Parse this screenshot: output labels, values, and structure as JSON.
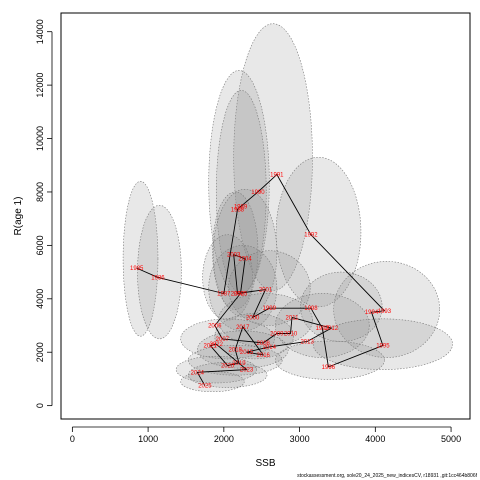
{
  "chart_data": {
    "type": "scatter",
    "title": "",
    "xlabel": "SSB",
    "ylabel": "R(age 1)",
    "xlim": [
      -150,
      5250
    ],
    "ylim": [
      -500,
      14700
    ],
    "x_ticks": [
      0,
      1000,
      2000,
      3000,
      4000,
      5000
    ],
    "y_ticks": [
      0,
      2000,
      4000,
      6000,
      8000,
      10000,
      12000,
      14000
    ],
    "x_tick_labels": [
      "0",
      "1000",
      "2000",
      "3000",
      "4000",
      "5000"
    ],
    "y_tick_labels": [
      "0",
      "2000",
      "4000",
      "6000",
      "8000",
      "10000",
      "12000",
      "14000"
    ],
    "grid": false,
    "footer": "stockassessment.org, sole20_24_2025_new_indicesCV, r18931 ,git:1cc464b806f",
    "colors": {
      "point_label": "#ff0000",
      "path_line": "#000000",
      "ellipse_fill": "#8a8a8a"
    },
    "points": [
      {
        "year": "1985",
        "x": 850,
        "y": 5150
      },
      {
        "year": "1986",
        "x": 1130,
        "y": 4800
      },
      {
        "year": "1987",
        "x": 2000,
        "y": 4200
      },
      {
        "year": "1988",
        "x": 2180,
        "y": 7350
      },
      {
        "year": "1989",
        "x": 2220,
        "y": 7450
      },
      {
        "year": "1990",
        "x": 2450,
        "y": 8000
      },
      {
        "year": "1991",
        "x": 2700,
        "y": 8650
      },
      {
        "year": "1992",
        "x": 3150,
        "y": 6400
      },
      {
        "year": "1993",
        "x": 4120,
        "y": 3550
      },
      {
        "year": "1994",
        "x": 3950,
        "y": 3500
      },
      {
        "year": "1995",
        "x": 4100,
        "y": 2250
      },
      {
        "year": "1996",
        "x": 3380,
        "y": 1450
      },
      {
        "year": "1997",
        "x": 3300,
        "y": 2900
      },
      {
        "year": "1998",
        "x": 3150,
        "y": 3650
      },
      {
        "year": "1999",
        "x": 2600,
        "y": 3650
      },
      {
        "year": "2000",
        "x": 2380,
        "y": 3300
      },
      {
        "year": "2001",
        "x": 2550,
        "y": 4350
      },
      {
        "year": "2002",
        "x": 2180,
        "y": 4200
      },
      {
        "year": "2003",
        "x": 2130,
        "y": 5650
      },
      {
        "year": "2004",
        "x": 2280,
        "y": 5500
      },
      {
        "year": "2005",
        "x": 2220,
        "y": 4200
      },
      {
        "year": "2006",
        "x": 1880,
        "y": 3000
      },
      {
        "year": "2007",
        "x": 1980,
        "y": 2500
      },
      {
        "year": "2008",
        "x": 2520,
        "y": 2350
      },
      {
        "year": "2009",
        "x": 2700,
        "y": 2700
      },
      {
        "year": "2010",
        "x": 2880,
        "y": 2700
      },
      {
        "year": "2011",
        "x": 2900,
        "y": 3300
      },
      {
        "year": "2012",
        "x": 3420,
        "y": 2900
      },
      {
        "year": "2013",
        "x": 3100,
        "y": 2400
      },
      {
        "year": "2014",
        "x": 2600,
        "y": 2200
      },
      {
        "year": "2015",
        "x": 2300,
        "y": 2000
      },
      {
        "year": "2016",
        "x": 2520,
        "y": 1900
      },
      {
        "year": "2017",
        "x": 2250,
        "y": 2950
      },
      {
        "year": "2018",
        "x": 2150,
        "y": 2100
      },
      {
        "year": "2019",
        "x": 2200,
        "y": 1600
      },
      {
        "year": "2020",
        "x": 2050,
        "y": 1500
      },
      {
        "year": "2021",
        "x": 1820,
        "y": 2250
      },
      {
        "year": "2022",
        "x": 1900,
        "y": 2300
      },
      {
        "year": "2023",
        "x": 2300,
        "y": 1350
      },
      {
        "year": "2024",
        "x": 1650,
        "y": 1250
      },
      {
        "year": "2025",
        "x": 1750,
        "y": 750
      }
    ],
    "ellipses": [
      {
        "cx": 2650,
        "cy": 9300,
        "rx": 520,
        "ry": 5000
      },
      {
        "cx": 2200,
        "cy": 8350,
        "rx": 400,
        "ry": 4200
      },
      {
        "cx": 2230,
        "cy": 8000,
        "rx": 330,
        "ry": 3800
      },
      {
        "cx": 3250,
        "cy": 6500,
        "rx": 560,
        "ry": 2800
      },
      {
        "cx": 2150,
        "cy": 5800,
        "rx": 300,
        "ry": 2200
      },
      {
        "cx": 2280,
        "cy": 5700,
        "rx": 420,
        "ry": 2400
      },
      {
        "cx": 2050,
        "cy": 4800,
        "rx": 330,
        "ry": 1600
      },
      {
        "cx": 900,
        "cy": 5500,
        "rx": 230,
        "ry": 2900
      },
      {
        "cx": 1150,
        "cy": 5000,
        "rx": 290,
        "ry": 2500
      },
      {
        "cx": 2250,
        "cy": 4400,
        "rx": 450,
        "ry": 1600
      },
      {
        "cx": 2600,
        "cy": 4400,
        "rx": 540,
        "ry": 1400
      },
      {
        "cx": 4150,
        "cy": 3600,
        "rx": 700,
        "ry": 1800
      },
      {
        "cx": 3550,
        "cy": 3700,
        "rx": 540,
        "ry": 1300
      },
      {
        "cx": 3300,
        "cy": 3000,
        "rx": 620,
        "ry": 1200
      },
      {
        "cx": 4100,
        "cy": 2300,
        "rx": 920,
        "ry": 950
      },
      {
        "cx": 3400,
        "cy": 1700,
        "rx": 720,
        "ry": 720
      },
      {
        "cx": 2550,
        "cy": 3200,
        "rx": 620,
        "ry": 1000
      },
      {
        "cx": 2400,
        "cy": 2600,
        "rx": 520,
        "ry": 850
      },
      {
        "cx": 2050,
        "cy": 2500,
        "rx": 620,
        "ry": 750
      },
      {
        "cx": 2250,
        "cy": 2100,
        "rx": 600,
        "ry": 700
      },
      {
        "cx": 2150,
        "cy": 1700,
        "rx": 620,
        "ry": 560
      },
      {
        "cx": 1900,
        "cy": 1350,
        "rx": 530,
        "ry": 500
      },
      {
        "cx": 1850,
        "cy": 900,
        "rx": 420,
        "ry": 380
      },
      {
        "cx": 2050,
        "cy": 1150,
        "rx": 520,
        "ry": 470
      }
    ]
  }
}
